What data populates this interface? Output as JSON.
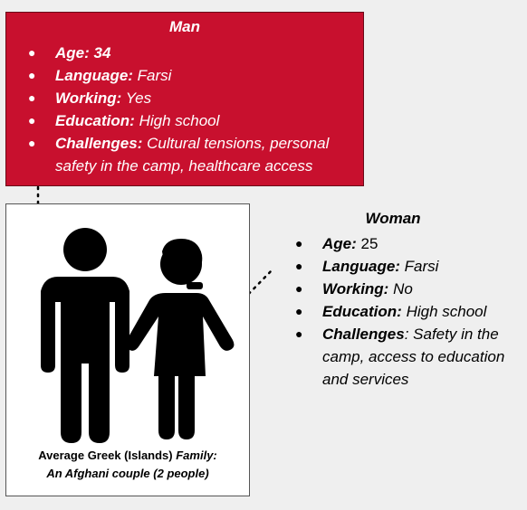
{
  "man": {
    "title": "Man",
    "facts": [
      {
        "label": "Age:",
        "value": " 34",
        "value_bold": true
      },
      {
        "label": "Language:",
        "value": " Farsi"
      },
      {
        "label": "Working:",
        "value": " Yes"
      },
      {
        "label": "Education:",
        "value": " High school"
      },
      {
        "label": "Challenges:",
        "value": " Cultural tensions, personal safety in the camp, healthcare access"
      }
    ]
  },
  "woman": {
    "title": "Woman",
    "facts": [
      {
        "label": "Age:",
        "value": " 25"
      },
      {
        "label": "Language:",
        "value": " Farsi"
      },
      {
        "label": "Working:",
        "value": " No"
      },
      {
        "label": "Education:",
        "value": " High school"
      },
      {
        "label": "Challenges",
        "value": ": Safety in the camp, access to education and services"
      }
    ]
  },
  "caption": {
    "line1_plain": "Average Greek (Islands) ",
    "line1_italic": "Family:",
    "line2": "An Afghani couple (2 people)"
  },
  "icons": {
    "man": "man-figure-icon",
    "woman": "woman-figure-icon"
  },
  "colors": {
    "man_box": "#c8102e",
    "figure": "#000000"
  }
}
